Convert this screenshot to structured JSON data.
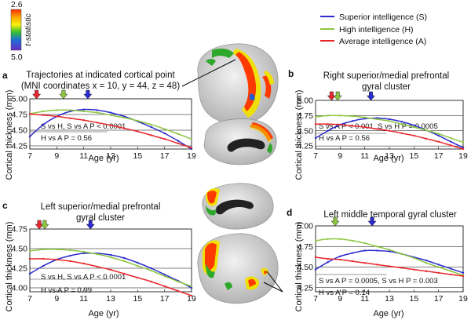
{
  "colorbar": {
    "top_label": "2.6",
    "bottom_label": "5.0",
    "title": "t-statistic"
  },
  "legend": [
    {
      "label": "Superior intelligence (S)",
      "color": "#2b2bd0"
    },
    {
      "label": "High intelligence (H)",
      "color": "#8cc63f"
    },
    {
      "label": "Average intelligence (A)",
      "color": "#e8262b"
    }
  ],
  "panels": [
    {
      "letter": "a",
      "title_lines": [
        "Trajectories at indicated cortical point",
        "(MNI coordinates x = 10, y = 44, z = 48)"
      ],
      "ylabel": "Cortical thickness (mm)",
      "xlabel": "Age (yr)",
      "annotations": [
        "S vs H, S vs A P < 0.0001",
        "H vs A P = 0.56"
      ]
    },
    {
      "letter": "b",
      "title_lines": [
        "Right superior/medial prefrontal",
        "gyral cluster"
      ],
      "ylabel": "Cortical thickness (mm)",
      "xlabel": "Age (yr)",
      "annotations": [
        "S vs A P < 0.001, S vs H P = 0.0005",
        "H vs A P = 0.56"
      ]
    },
    {
      "letter": "c",
      "title_lines": [
        "Left superior/medial prefrontal",
        "gyral cluster"
      ],
      "ylabel": "Cortical thickness (mm)",
      "xlabel": "Age (yr)",
      "annotations": [
        "S vs H, S vs A P < 0.0001",
        "H vs A P = 0.99"
      ]
    },
    {
      "letter": "d",
      "title_lines": [
        "Left middle temporal gyral cluster"
      ],
      "ylabel": "Cortical thickness (mm)",
      "xlabel": "Age (yr)",
      "annotations": [
        "S vs A P = 0.0005, S vs H P = 0.003",
        "H vs A P = 0.14"
      ]
    }
  ],
  "chart_data": [
    {
      "panel": "a",
      "type": "line",
      "x": [
        7,
        8,
        9,
        10,
        11,
        12,
        13,
        14,
        15,
        16,
        17,
        18,
        19
      ],
      "series": [
        {
          "name": "Superior intelligence (S)",
          "values": [
            4.4,
            4.59,
            4.72,
            4.8,
            4.83,
            4.82,
            4.78,
            4.72,
            4.64,
            4.55,
            4.45,
            4.33,
            4.2
          ]
        },
        {
          "name": "High intelligence (H)",
          "values": [
            4.76,
            4.8,
            4.82,
            4.82,
            4.8,
            4.78,
            4.74,
            4.7,
            4.65,
            4.59,
            4.52,
            4.44,
            4.36
          ]
        },
        {
          "name": "Average intelligence (A)",
          "values": [
            4.76,
            4.74,
            4.72,
            4.69,
            4.66,
            4.62,
            4.58,
            4.53,
            4.48,
            4.42,
            4.36,
            4.29,
            4.22
          ]
        }
      ],
      "peaks": [
        7.5,
        9.5,
        11.3
      ],
      "xticks": [
        7,
        9,
        11,
        13,
        15,
        17,
        19
      ],
      "yticks": [
        4.25,
        4.5,
        4.75,
        5.0
      ],
      "xlim": [
        7,
        19
      ],
      "ylim": [
        4.2,
        5.0
      ],
      "grid": "horizontal"
    },
    {
      "panel": "b",
      "type": "line",
      "x": [
        7,
        8,
        9,
        10,
        11,
        12,
        13,
        14,
        15,
        16,
        17,
        18,
        19
      ],
      "series": [
        {
          "name": "Superior intelligence (S)",
          "values": [
            4.38,
            4.5,
            4.6,
            4.66,
            4.7,
            4.71,
            4.69,
            4.65,
            4.59,
            4.51,
            4.42,
            4.32,
            4.22
          ]
        },
        {
          "name": "High intelligence (H)",
          "values": [
            4.73,
            4.75,
            4.75,
            4.74,
            4.72,
            4.69,
            4.66,
            4.61,
            4.56,
            4.51,
            4.45,
            4.38,
            4.31
          ]
        },
        {
          "name": "Average intelligence (A)",
          "values": [
            4.61,
            4.61,
            4.6,
            4.58,
            4.56,
            4.53,
            4.5,
            4.46,
            4.42,
            4.37,
            4.32,
            4.26,
            4.2
          ]
        }
      ],
      "peaks": [
        8.3,
        8.8,
        11.5
      ],
      "xticks": [
        7,
        9,
        11,
        13,
        15,
        17,
        19
      ],
      "yticks": [
        4.25,
        4.5,
        4.75,
        5.0
      ],
      "xlim": [
        7,
        19
      ],
      "ylim": [
        4.2,
        5.0
      ],
      "grid": "horizontal"
    },
    {
      "panel": "c",
      "type": "line",
      "x": [
        7,
        8,
        9,
        10,
        11,
        12,
        13,
        14,
        15,
        16,
        17,
        18,
        19
      ],
      "series": [
        {
          "name": "Superior intelligence (S)",
          "values": [
            4.18,
            4.28,
            4.36,
            4.41,
            4.44,
            4.44,
            4.42,
            4.38,
            4.32,
            4.25,
            4.17,
            4.09,
            4.0
          ]
        },
        {
          "name": "High intelligence (H)",
          "values": [
            4.47,
            4.49,
            4.49,
            4.48,
            4.46,
            4.43,
            4.39,
            4.34,
            4.28,
            4.22,
            4.15,
            4.08,
            4.02
          ]
        },
        {
          "name": "Average intelligence (A)",
          "values": [
            4.37,
            4.37,
            4.36,
            4.34,
            4.31,
            4.27,
            4.23,
            4.18,
            4.13,
            4.08,
            4.02,
            3.96,
            3.9
          ]
        }
      ],
      "peaks": [
        7.7,
        8.1,
        11.5
      ],
      "xticks": [
        7,
        9,
        11,
        13,
        15,
        17,
        19
      ],
      "yticks": [
        4.0,
        4.25,
        4.5,
        4.75
      ],
      "xlim": [
        7,
        19
      ],
      "ylim": [
        3.95,
        4.75
      ],
      "grid": "horizontal"
    },
    {
      "panel": "d",
      "type": "line",
      "x": [
        7,
        8,
        9,
        10,
        11,
        12,
        13,
        14,
        15,
        16,
        17,
        18,
        19
      ],
      "series": [
        {
          "name": "Superior intelligence (S)",
          "values": [
            4.47,
            4.56,
            4.63,
            4.67,
            4.7,
            4.7,
            4.69,
            4.66,
            4.62,
            4.58,
            4.53,
            4.48,
            4.43
          ]
        },
        {
          "name": "High intelligence (H)",
          "values": [
            4.82,
            4.84,
            4.84,
            4.82,
            4.79,
            4.75,
            4.71,
            4.66,
            4.61,
            4.55,
            4.5,
            4.45,
            4.4
          ]
        },
        {
          "name": "Average intelligence (A)",
          "values": [
            4.62,
            4.6,
            4.59,
            4.57,
            4.55,
            4.53,
            4.51,
            4.49,
            4.47,
            4.45,
            4.43,
            4.41,
            4.39
          ]
        }
      ],
      "peaks": [
        8.6,
        11.6
      ],
      "xticks": [
        7,
        9,
        11,
        13,
        15,
        17,
        19
      ],
      "yticks": [
        4.25,
        4.5,
        4.75,
        5.0
      ],
      "xlim": [
        7,
        19
      ],
      "ylim": [
        4.2,
        5.0
      ],
      "grid": "horizontal"
    }
  ]
}
